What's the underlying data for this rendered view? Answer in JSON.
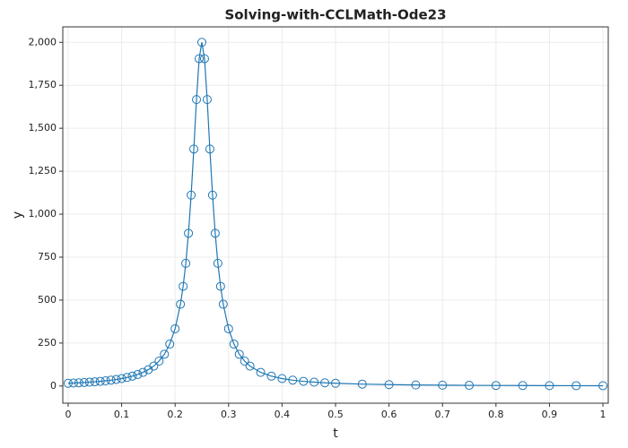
{
  "chart_data": {
    "type": "line",
    "title": "Solving-with-CCLMath-Ode23",
    "x_label": "t",
    "y_label": "y",
    "x": [
      0,
      0.01,
      0.02,
      0.03,
      0.04,
      0.05,
      0.06,
      0.07,
      0.08,
      0.09,
      0.1,
      0.11,
      0.12,
      0.13,
      0.14,
      0.15,
      0.16,
      0.17,
      0.18,
      0.19,
      0.2,
      0.21,
      0.215,
      0.22,
      0.225,
      0.23,
      0.235,
      0.24,
      0.245,
      0.25,
      0.255,
      0.26,
      0.265,
      0.27,
      0.275,
      0.28,
      0.285,
      0.29,
      0.3,
      0.31,
      0.32,
      0.33,
      0.34,
      0.36,
      0.38,
      0.4,
      0.42,
      0.44,
      0.46,
      0.48,
      0.5,
      0.55,
      0.6,
      0.65,
      0.7,
      0.75,
      0.8,
      0.85,
      0.9,
      0.95,
      1
    ],
    "series": [
      {
        "name": "y",
        "color": "#1f77b4",
        "marker": "open-circle",
        "values": [
          15.9,
          17.2,
          18.7,
          20.4,
          22.4,
          24.7,
          27.3,
          30.4,
          34.0,
          38.3,
          43.5,
          49.8,
          57.5,
          67.1,
          79.4,
          95.2,
          116,
          145,
          185,
          244,
          333,
          476,
          580,
          714,
          889,
          1111,
          1379,
          1667,
          1905,
          2000,
          1905,
          1667,
          1379,
          1111,
          889,
          714,
          580,
          476,
          333,
          244,
          185,
          145,
          116,
          79.4,
          57.5,
          43.5,
          34.0,
          27.3,
          22.4,
          18.7,
          15.9,
          11.0,
          8.1,
          6.2,
          4.9,
          4.0,
          3.3,
          2.8,
          2.4,
          2.0,
          1.8
        ]
      }
    ],
    "xlim": [
      -0.01,
      1.01
    ],
    "ylim": [
      -100,
      2090
    ],
    "xticks": [
      0,
      0.1,
      0.2,
      0.3,
      0.4,
      0.5,
      0.6,
      0.7,
      0.8,
      0.9,
      1
    ],
    "yticks": [
      0,
      250,
      500,
      750,
      {
        "value": 1000,
        "label": "1,000"
      },
      {
        "value": 1250,
        "label": "1,250"
      },
      {
        "value": 1500,
        "label": "1,500"
      },
      {
        "value": 1750,
        "label": "1,750"
      },
      {
        "value": 2000,
        "label": "2,000"
      }
    ],
    "grid": true
  }
}
